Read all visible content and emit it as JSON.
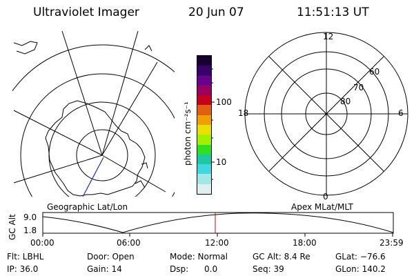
{
  "header": {
    "title": "Ultraviolet Imager",
    "date": "20 Jun 07",
    "time": "11:51:13 UT"
  },
  "left_map": {
    "caption": "Geographic Lat/Lon"
  },
  "right_map": {
    "caption": "Apex MLat/MLT",
    "mlt_labels": [
      "12",
      "18",
      "6",
      "0"
    ],
    "lat_labels": [
      "60",
      "70",
      "80"
    ]
  },
  "colorbar": {
    "unit_label": "photon cm⁻²s⁻¹",
    "ticks": [
      "100",
      "10"
    ],
    "colors": [
      "#1a0030",
      "#3a006a",
      "#6a0090",
      "#9a0060",
      "#c80020",
      "#e06010",
      "#f0a000",
      "#e8e000",
      "#a0f000",
      "#30e020",
      "#20c8a0",
      "#40d8e0",
      "#a0e8e8",
      "#e0f0f0"
    ]
  },
  "alt_plot": {
    "ylabel": "GC Alt",
    "y_ticks": [
      "9.0",
      "1.8"
    ],
    "x_ticks": [
      "00:00",
      "06:00",
      "12:00",
      "18:00",
      "23:59"
    ],
    "marker_time": "11:51",
    "marker_color": "#d40000"
  },
  "status": {
    "flt": "Flt: LBHL",
    "ip": "IP: 36.0",
    "door": "Door: Open",
    "gain": "Gain: 14",
    "mode": "Mode: Normal",
    "dsp": "Dsp:      0.0",
    "gc_alt": "GC Alt: 8.4 Re",
    "seq": "Seq: 39",
    "glat": "GLat: −76.6",
    "glon": "GLon: 140.2"
  }
}
